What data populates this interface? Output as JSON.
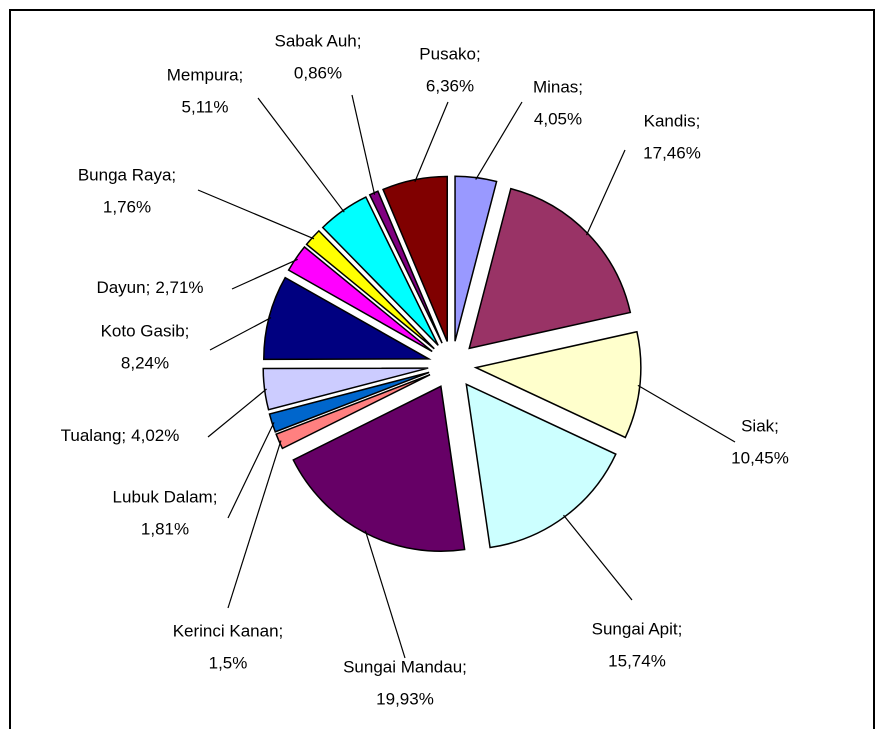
{
  "chart_data": {
    "type": "pie",
    "categories": [
      "Minas;",
      "Kandis;",
      "Siak;",
      "Sungai Apit;",
      "Sungai Mandau;",
      "Kerinci Kanan;",
      "Lubuk Dalam;",
      "Tualang;",
      "Koto Gasib;",
      "Dayun;",
      "Bunga Raya;",
      "Mempura;",
      "Sabak Auh;",
      "Pusako;"
    ],
    "values": [
      4.05,
      17.46,
      10.45,
      15.74,
      19.93,
      1.5,
      1.81,
      4.02,
      8.24,
      2.71,
      1.76,
      5.11,
      0.86,
      6.36
    ],
    "value_labels": [
      "4,05%",
      "17,46%",
      "10,45%",
      "15,74%",
      "19,93%",
      "1,5%",
      "1,81%",
      "4,02%",
      "8,24%",
      "2,71%",
      "1,76%",
      "5,11%",
      "0,86%",
      "6,36%"
    ],
    "colors": [
      "#9999ff",
      "#993366",
      "#ffffcc",
      "#ccffff",
      "#660066",
      "#ff8080",
      "#0066cc",
      "#ccccff",
      "#000080",
      "#ff00ff",
      "#ffff00",
      "#00ffff",
      "#800080",
      "#800000"
    ]
  }
}
